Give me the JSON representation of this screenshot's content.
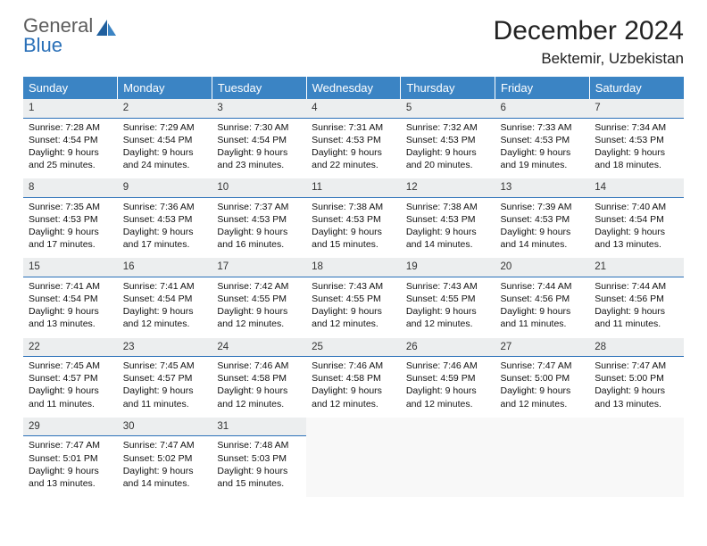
{
  "logo": {
    "general": "General",
    "blue": "Blue"
  },
  "title": "December 2024",
  "location": "Bektemir, Uzbekistan",
  "colors": {
    "header_bg": "#3b84c4",
    "header_text": "#ffffff",
    "daynum_bg": "#eceeef",
    "daynum_border": "#2a70b8",
    "logo_gray": "#5c5c5c",
    "logo_blue": "#2a70b8"
  },
  "day_headers": [
    "Sunday",
    "Monday",
    "Tuesday",
    "Wednesday",
    "Thursday",
    "Friday",
    "Saturday"
  ],
  "weeks": [
    [
      {
        "n": "1",
        "sr": "Sunrise: 7:28 AM",
        "ss": "Sunset: 4:54 PM",
        "d1": "Daylight: 9 hours",
        "d2": "and 25 minutes."
      },
      {
        "n": "2",
        "sr": "Sunrise: 7:29 AM",
        "ss": "Sunset: 4:54 PM",
        "d1": "Daylight: 9 hours",
        "d2": "and 24 minutes."
      },
      {
        "n": "3",
        "sr": "Sunrise: 7:30 AM",
        "ss": "Sunset: 4:54 PM",
        "d1": "Daylight: 9 hours",
        "d2": "and 23 minutes."
      },
      {
        "n": "4",
        "sr": "Sunrise: 7:31 AM",
        "ss": "Sunset: 4:53 PM",
        "d1": "Daylight: 9 hours",
        "d2": "and 22 minutes."
      },
      {
        "n": "5",
        "sr": "Sunrise: 7:32 AM",
        "ss": "Sunset: 4:53 PM",
        "d1": "Daylight: 9 hours",
        "d2": "and 20 minutes."
      },
      {
        "n": "6",
        "sr": "Sunrise: 7:33 AM",
        "ss": "Sunset: 4:53 PM",
        "d1": "Daylight: 9 hours",
        "d2": "and 19 minutes."
      },
      {
        "n": "7",
        "sr": "Sunrise: 7:34 AM",
        "ss": "Sunset: 4:53 PM",
        "d1": "Daylight: 9 hours",
        "d2": "and 18 minutes."
      }
    ],
    [
      {
        "n": "8",
        "sr": "Sunrise: 7:35 AM",
        "ss": "Sunset: 4:53 PM",
        "d1": "Daylight: 9 hours",
        "d2": "and 17 minutes."
      },
      {
        "n": "9",
        "sr": "Sunrise: 7:36 AM",
        "ss": "Sunset: 4:53 PM",
        "d1": "Daylight: 9 hours",
        "d2": "and 17 minutes."
      },
      {
        "n": "10",
        "sr": "Sunrise: 7:37 AM",
        "ss": "Sunset: 4:53 PM",
        "d1": "Daylight: 9 hours",
        "d2": "and 16 minutes."
      },
      {
        "n": "11",
        "sr": "Sunrise: 7:38 AM",
        "ss": "Sunset: 4:53 PM",
        "d1": "Daylight: 9 hours",
        "d2": "and 15 minutes."
      },
      {
        "n": "12",
        "sr": "Sunrise: 7:38 AM",
        "ss": "Sunset: 4:53 PM",
        "d1": "Daylight: 9 hours",
        "d2": "and 14 minutes."
      },
      {
        "n": "13",
        "sr": "Sunrise: 7:39 AM",
        "ss": "Sunset: 4:53 PM",
        "d1": "Daylight: 9 hours",
        "d2": "and 14 minutes."
      },
      {
        "n": "14",
        "sr": "Sunrise: 7:40 AM",
        "ss": "Sunset: 4:54 PM",
        "d1": "Daylight: 9 hours",
        "d2": "and 13 minutes."
      }
    ],
    [
      {
        "n": "15",
        "sr": "Sunrise: 7:41 AM",
        "ss": "Sunset: 4:54 PM",
        "d1": "Daylight: 9 hours",
        "d2": "and 13 minutes."
      },
      {
        "n": "16",
        "sr": "Sunrise: 7:41 AM",
        "ss": "Sunset: 4:54 PM",
        "d1": "Daylight: 9 hours",
        "d2": "and 12 minutes."
      },
      {
        "n": "17",
        "sr": "Sunrise: 7:42 AM",
        "ss": "Sunset: 4:55 PM",
        "d1": "Daylight: 9 hours",
        "d2": "and 12 minutes."
      },
      {
        "n": "18",
        "sr": "Sunrise: 7:43 AM",
        "ss": "Sunset: 4:55 PM",
        "d1": "Daylight: 9 hours",
        "d2": "and 12 minutes."
      },
      {
        "n": "19",
        "sr": "Sunrise: 7:43 AM",
        "ss": "Sunset: 4:55 PM",
        "d1": "Daylight: 9 hours",
        "d2": "and 12 minutes."
      },
      {
        "n": "20",
        "sr": "Sunrise: 7:44 AM",
        "ss": "Sunset: 4:56 PM",
        "d1": "Daylight: 9 hours",
        "d2": "and 11 minutes."
      },
      {
        "n": "21",
        "sr": "Sunrise: 7:44 AM",
        "ss": "Sunset: 4:56 PM",
        "d1": "Daylight: 9 hours",
        "d2": "and 11 minutes."
      }
    ],
    [
      {
        "n": "22",
        "sr": "Sunrise: 7:45 AM",
        "ss": "Sunset: 4:57 PM",
        "d1": "Daylight: 9 hours",
        "d2": "and 11 minutes."
      },
      {
        "n": "23",
        "sr": "Sunrise: 7:45 AM",
        "ss": "Sunset: 4:57 PM",
        "d1": "Daylight: 9 hours",
        "d2": "and 11 minutes."
      },
      {
        "n": "24",
        "sr": "Sunrise: 7:46 AM",
        "ss": "Sunset: 4:58 PM",
        "d1": "Daylight: 9 hours",
        "d2": "and 12 minutes."
      },
      {
        "n": "25",
        "sr": "Sunrise: 7:46 AM",
        "ss": "Sunset: 4:58 PM",
        "d1": "Daylight: 9 hours",
        "d2": "and 12 minutes."
      },
      {
        "n": "26",
        "sr": "Sunrise: 7:46 AM",
        "ss": "Sunset: 4:59 PM",
        "d1": "Daylight: 9 hours",
        "d2": "and 12 minutes."
      },
      {
        "n": "27",
        "sr": "Sunrise: 7:47 AM",
        "ss": "Sunset: 5:00 PM",
        "d1": "Daylight: 9 hours",
        "d2": "and 12 minutes."
      },
      {
        "n": "28",
        "sr": "Sunrise: 7:47 AM",
        "ss": "Sunset: 5:00 PM",
        "d1": "Daylight: 9 hours",
        "d2": "and 13 minutes."
      }
    ],
    [
      {
        "n": "29",
        "sr": "Sunrise: 7:47 AM",
        "ss": "Sunset: 5:01 PM",
        "d1": "Daylight: 9 hours",
        "d2": "and 13 minutes."
      },
      {
        "n": "30",
        "sr": "Sunrise: 7:47 AM",
        "ss": "Sunset: 5:02 PM",
        "d1": "Daylight: 9 hours",
        "d2": "and 14 minutes."
      },
      {
        "n": "31",
        "sr": "Sunrise: 7:48 AM",
        "ss": "Sunset: 5:03 PM",
        "d1": "Daylight: 9 hours",
        "d2": "and 15 minutes."
      },
      null,
      null,
      null,
      null
    ]
  ]
}
